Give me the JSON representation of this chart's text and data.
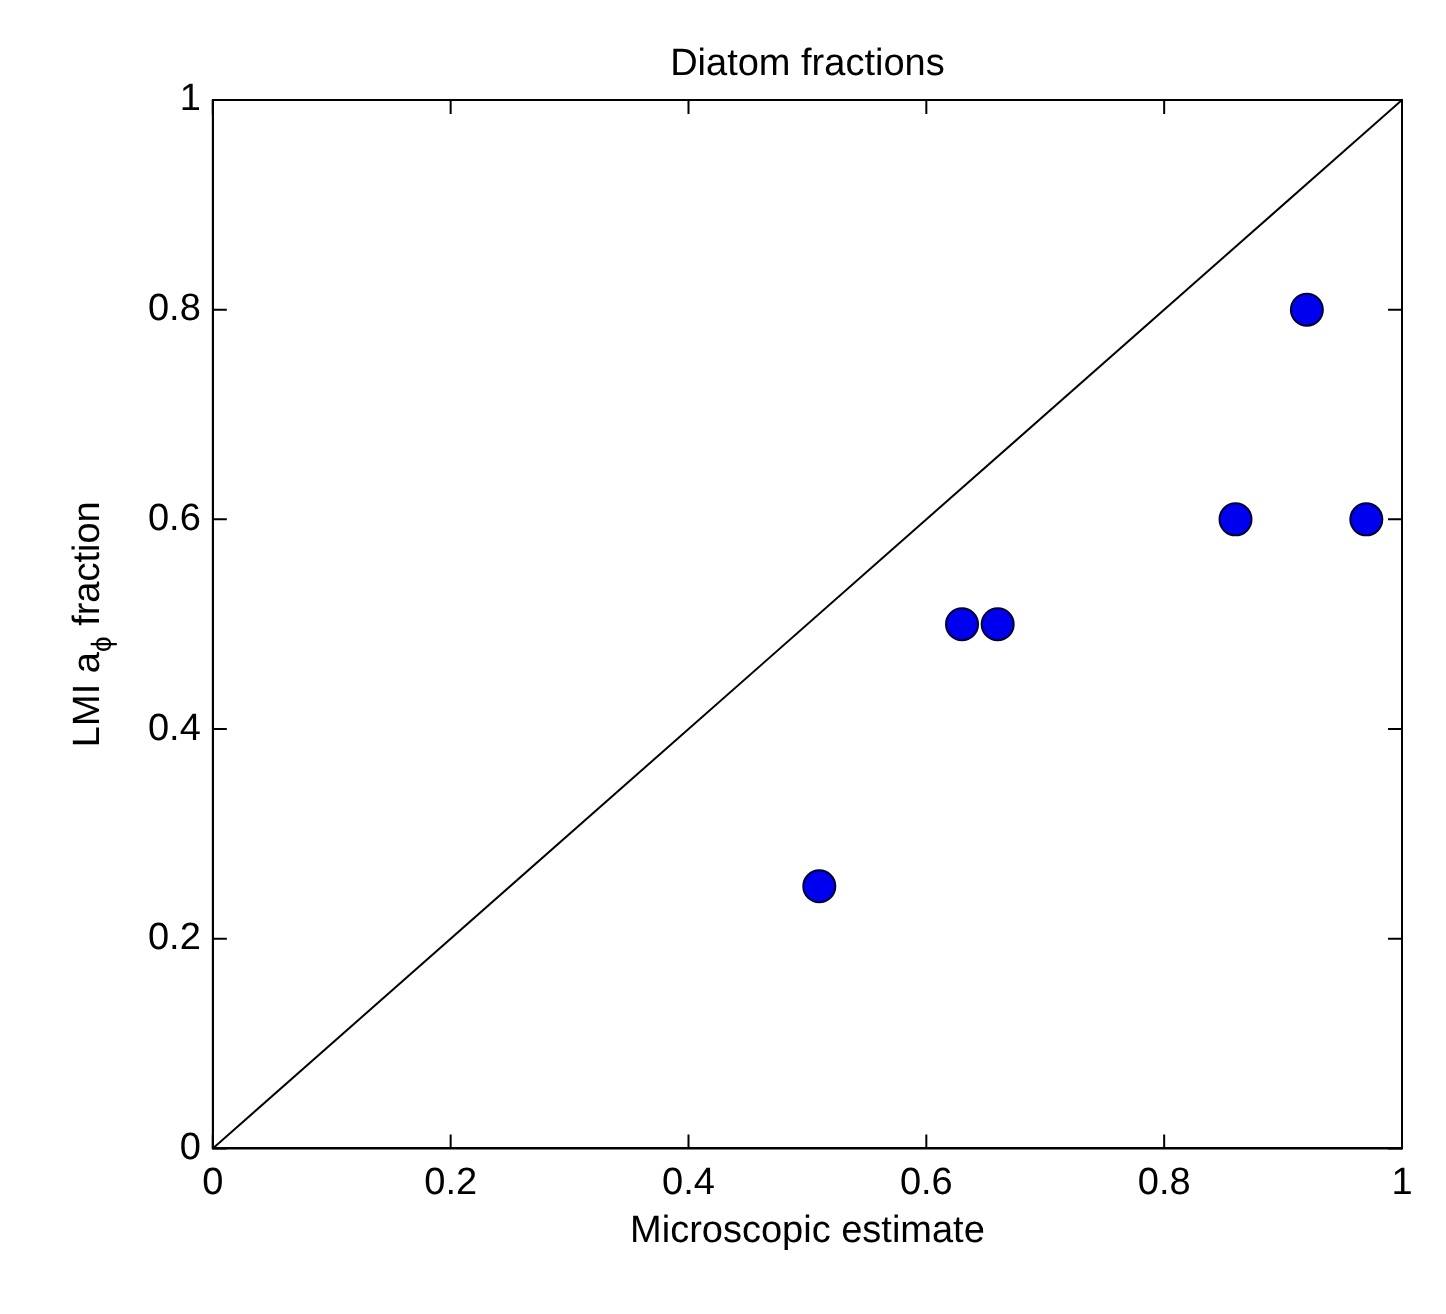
{
  "chart_data": {
    "type": "scatter",
    "title": "Diatom fractions",
    "xlabel": "Microscopic estimate",
    "ylabel": "LMI a$_{ϕ}$ fraction",
    "series": [
      {
        "type": "scatter",
        "marker": "circle",
        "color": "#0000ee",
        "x": [
          0.51,
          0.63,
          0.66,
          0.86,
          0.92,
          0.97
        ],
        "values": [
          0.25,
          0.5,
          0.5,
          0.6,
          0.8,
          0.6
        ]
      },
      {
        "type": "line",
        "color": "#000000",
        "x": [
          0,
          1
        ],
        "values": [
          0,
          1
        ]
      }
    ],
    "xlim": [
      0,
      1
    ],
    "ylim": [
      0,
      1
    ],
    "xticks": [
      0,
      0.2,
      0.4,
      0.6,
      0.8,
      1
    ],
    "yticks": [
      0,
      0.2,
      0.4,
      0.6,
      0.8,
      1
    ],
    "grid": false,
    "legend": false
  }
}
